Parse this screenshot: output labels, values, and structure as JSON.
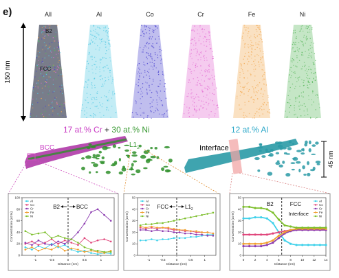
{
  "panel_label": "e)",
  "tips": {
    "labels": [
      "All",
      "Al",
      "Co",
      "Cr",
      "Fe",
      "Ni"
    ],
    "colors": [
      "#6a6f7d",
      "#52c8e3",
      "#4b44cf",
      "#e36ad2",
      "#f2a850",
      "#58b75c"
    ],
    "scale_bar_label": "150 nm",
    "phase_labels": {
      "top": "B2",
      "bottom": "FCC"
    }
  },
  "isosurfaces": {
    "left_title": {
      "cr_text": "17 at.% Cr",
      "plus": " + ",
      "ni_text": "30 at.% Ni",
      "cr_color": "#c93cc4",
      "ni_color": "#3a9a34"
    },
    "right_title": {
      "text": "12 at.% Al",
      "color": "#2aa7c8"
    },
    "bcc_label": "BCC",
    "l12_label": "L1",
    "l12_sub": "2",
    "interface_label": "Interface",
    "scale_label": "45 nm",
    "colors": {
      "cr": "#b03aa8",
      "ni": "#2f8f2a",
      "al": "#2a9aa6"
    }
  },
  "chart_data": [
    {
      "type": "line",
      "legend": [
        "Al",
        "Co",
        "Cr",
        "Fe",
        "Ni"
      ],
      "colors": [
        "#3fd1ea",
        "#e0447a",
        "#8c3cb0",
        "#f0a030",
        "#7dbf2c"
      ],
      "xlabel": "Distance (nm)",
      "ylabel": "Concentration (at.%)",
      "xlim": [
        -1.4,
        1.4
      ],
      "ylim": [
        0,
        100
      ],
      "xticks": [
        -1.0,
        -0.5,
        0.0,
        0.5,
        1.0
      ],
      "yticks": [
        0,
        20,
        40,
        60,
        80,
        100
      ],
      "annotations": {
        "left": "B2",
        "right": "BCC"
      },
      "divider_x": 0.0,
      "x": [
        -1.3,
        -1.1,
        -0.9,
        -0.7,
        -0.5,
        -0.3,
        -0.1,
        0.1,
        0.3,
        0.5,
        0.7,
        0.9,
        1.1,
        1.3
      ],
      "series": [
        {
          "name": "Al",
          "values": [
            14,
            10,
            16,
            12,
            20,
            14,
            18,
            10,
            6,
            8,
            4,
            2,
            4,
            3
          ]
        },
        {
          "name": "Co",
          "values": [
            20,
            24,
            18,
            22,
            28,
            20,
            26,
            22,
            18,
            30,
            22,
            26,
            28,
            24
          ]
        },
        {
          "name": "Cr",
          "values": [
            22,
            18,
            26,
            20,
            18,
            24,
            20,
            28,
            40,
            55,
            75,
            80,
            70,
            60
          ]
        },
        {
          "name": "Fe",
          "values": [
            10,
            14,
            8,
            12,
            10,
            16,
            8,
            12,
            10,
            6,
            8,
            6,
            4,
            8
          ]
        },
        {
          "name": "Ni",
          "values": [
            42,
            36,
            38,
            40,
            30,
            34,
            30,
            28,
            22,
            14,
            10,
            8,
            6,
            6
          ]
        }
      ]
    },
    {
      "type": "line",
      "legend": [
        "Al",
        "Co",
        "Cr",
        "Fe",
        "Ni"
      ],
      "colors": [
        "#3fd1ea",
        "#e0447a",
        "#8c3cb0",
        "#f0a030",
        "#7dbf2c"
      ],
      "xlabel": "Distance (nm)",
      "ylabel": "Concentration (at.%)",
      "xlim": [
        -1.4,
        1.4
      ],
      "ylim": [
        0,
        50
      ],
      "xticks": [
        -1.0,
        -0.5,
        0.0,
        0.5,
        1.0
      ],
      "yticks": [
        0,
        10,
        20,
        30,
        40,
        50
      ],
      "annotations": {
        "left": "FCC",
        "right": "L1",
        "right_sub": "2"
      },
      "divider_x": 0.0,
      "x": [
        -1.3,
        -1.1,
        -0.9,
        -0.7,
        -0.5,
        -0.3,
        -0.1,
        0.1,
        0.3,
        0.5,
        0.7,
        0.9,
        1.1,
        1.3
      ],
      "series": [
        {
          "name": "Al",
          "values": [
            13,
            13,
            14,
            13,
            14,
            14,
            15,
            15,
            15,
            16,
            16,
            17,
            18,
            18
          ]
        },
        {
          "name": "Co",
          "values": [
            24,
            23,
            24,
            23,
            24,
            23,
            22,
            22,
            21,
            21,
            20,
            20,
            20,
            19
          ]
        },
        {
          "name": "Cr",
          "values": [
            22,
            22,
            21,
            22,
            21,
            21,
            20,
            20,
            19,
            19,
            18,
            18,
            17,
            17
          ]
        },
        {
          "name": "Fe",
          "values": [
            25,
            24,
            25,
            24,
            24,
            24,
            23,
            22,
            22,
            21,
            21,
            20,
            20,
            19
          ]
        },
        {
          "name": "Ni",
          "values": [
            26,
            27,
            27,
            28,
            28,
            29,
            30,
            31,
            32,
            33,
            34,
            35,
            36,
            37
          ]
        }
      ]
    },
    {
      "type": "line",
      "legend": [
        "Al",
        "Co",
        "Cr",
        "Fe",
        "Ni"
      ],
      "colors": [
        "#3fd1ea",
        "#e0447a",
        "#8c3cb0",
        "#f0a030",
        "#7dbf2c"
      ],
      "xlabel": "Distance (nm)",
      "ylabel": "Concentration (at.%)",
      "xlim": [
        0,
        14
      ],
      "ylim": [
        0,
        50
      ],
      "xticks": [
        0,
        2,
        4,
        6,
        8,
        10,
        12,
        14
      ],
      "yticks": [
        0,
        10,
        20,
        30,
        40,
        50
      ],
      "annotations": {
        "left": "B2",
        "right": "FCC",
        "extra": "Interface"
      },
      "divider_x": 6.5,
      "x": [
        0,
        1,
        2,
        3,
        4,
        5,
        6,
        7,
        8,
        9,
        10,
        11,
        12,
        13,
        14
      ],
      "series": [
        {
          "name": "Al",
          "values": [
            32,
            32,
            33,
            33,
            32,
            28,
            20,
            13,
            10,
            9,
            9,
            9,
            9,
            9,
            9
          ]
        },
        {
          "name": "Co",
          "values": [
            18,
            18,
            18,
            18,
            18,
            19,
            20,
            21,
            22,
            22,
            22,
            22,
            22,
            22,
            22
          ]
        },
        {
          "name": "Cr",
          "values": [
            8,
            8,
            8,
            8,
            9,
            11,
            15,
            19,
            21,
            22,
            22,
            22,
            22,
            22,
            22
          ]
        },
        {
          "name": "Fe",
          "values": [
            10,
            10,
            10,
            10,
            11,
            13,
            17,
            20,
            22,
            23,
            23,
            23,
            23,
            23,
            23
          ]
        },
        {
          "name": "Ni",
          "values": [
            42,
            42,
            41,
            41,
            40,
            37,
            31,
            26,
            25,
            24,
            24,
            24,
            24,
            24,
            24
          ]
        }
      ]
    }
  ]
}
